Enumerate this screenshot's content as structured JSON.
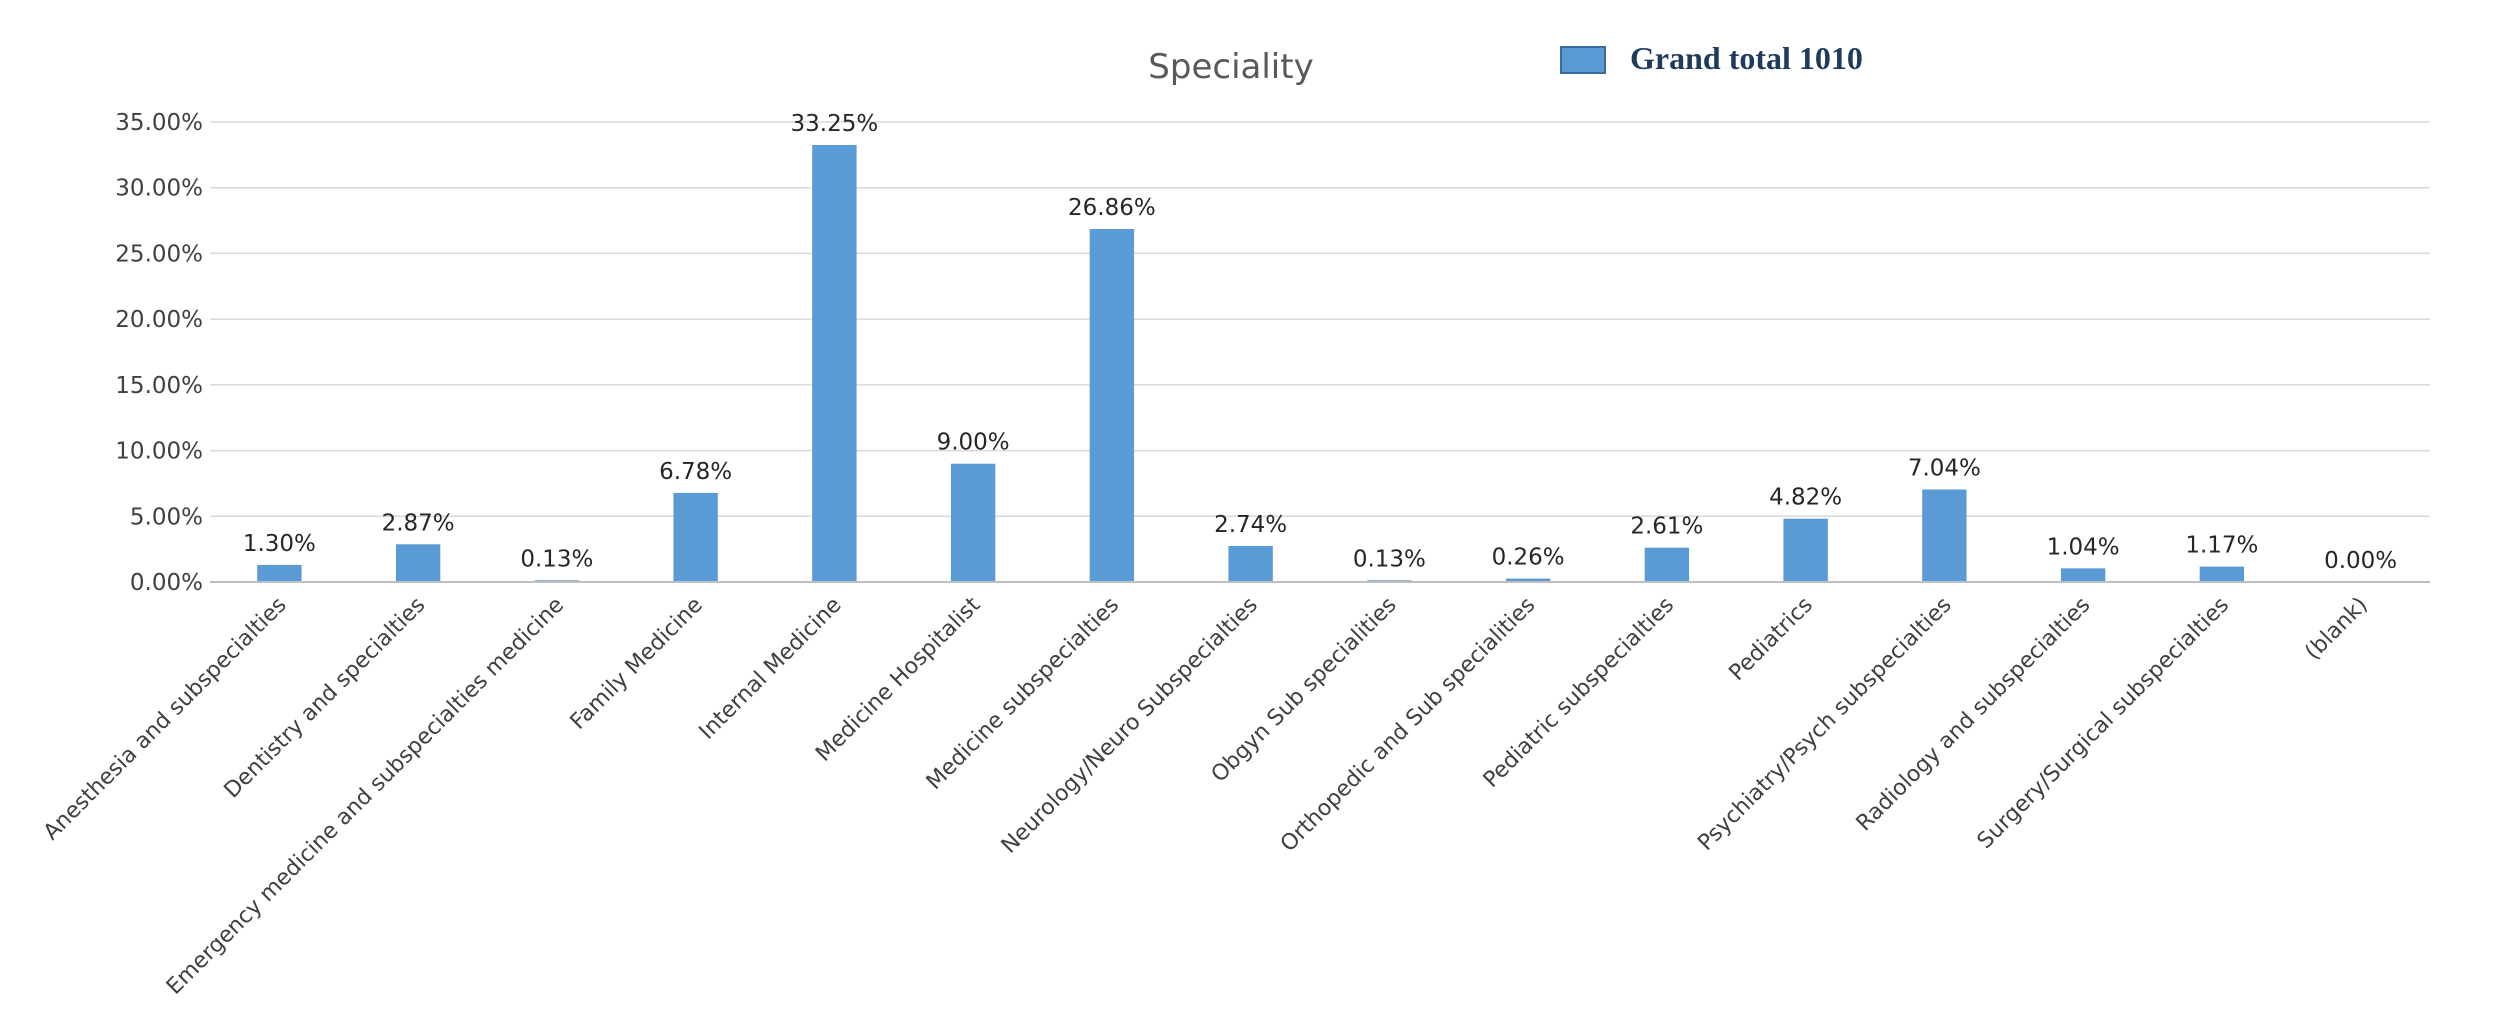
{
  "chart_data": {
    "type": "bar",
    "title": "Speciality",
    "legend": {
      "label": "Grand total 1010",
      "position": "top-right"
    },
    "series": [
      {
        "name": "Grand total 1010",
        "color": "#5b9bd5",
        "values": [
          1.3,
          2.87,
          0.13,
          6.78,
          33.25,
          9.0,
          26.86,
          2.74,
          0.13,
          0.26,
          2.61,
          4.82,
          7.04,
          1.04,
          1.17,
          0.0
        ]
      }
    ],
    "categories": [
      "Anesthesia and subspecialties",
      "Dentistry and specialties",
      "Emergency medicine and subspecialties medicine",
      "Family Medicine",
      "Internal Medicine",
      "Medicine Hospitalist",
      "Medicine subspecialties",
      "Neurology/Neuro Subspecialties",
      "Obgyn Sub specialities",
      "Orthopedic and Sub specialities",
      "Pediatric subspecialties",
      "Pediatrics",
      "Psychiatry/Psych subspecialties",
      "Radiology and subspecialties",
      "Surgery/Surgical subspecialties",
      "(blank)"
    ],
    "data_labels": [
      "1.30%",
      "2.87%",
      "0.13%",
      "6.78%",
      "33.25%",
      "9.00%",
      "26.86%",
      "2.74%",
      "0.13%",
      "0.26%",
      "2.61%",
      "4.82%",
      "7.04%",
      "1.04%",
      "1.17%",
      "0.00%"
    ],
    "yticks": [
      0,
      5,
      10,
      15,
      20,
      25,
      30,
      35
    ],
    "ytick_labels": [
      "0.00%",
      "5.00%",
      "10.00%",
      "15.00%",
      "20.00%",
      "25.00%",
      "30.00%",
      "35.00%"
    ],
    "ylim": [
      0,
      35
    ],
    "grid": true,
    "xlabel": "",
    "ylabel": ""
  }
}
